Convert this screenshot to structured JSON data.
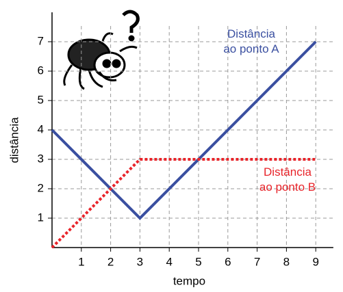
{
  "chart_data": {
    "type": "line",
    "x_label": "tempo",
    "y_label": "distância",
    "x": [
      0,
      3,
      9
    ],
    "series": [
      {
        "name": "Distância ao ponto A",
        "color": "#3a4fa0",
        "style": "solid",
        "values": [
          4,
          1,
          7
        ]
      },
      {
        "name": "Distância ao ponto B",
        "color": "#e8242a",
        "style": "dotted",
        "values": [
          0,
          3,
          3
        ]
      }
    ],
    "xlim": [
      0,
      9.6
    ],
    "ylim": [
      0,
      8
    ],
    "xticks": [
      1,
      2,
      3,
      4,
      5,
      6,
      7,
      8,
      9
    ],
    "yticks": [
      1,
      2,
      3,
      4,
      5,
      6,
      7
    ],
    "grid": true
  }
}
